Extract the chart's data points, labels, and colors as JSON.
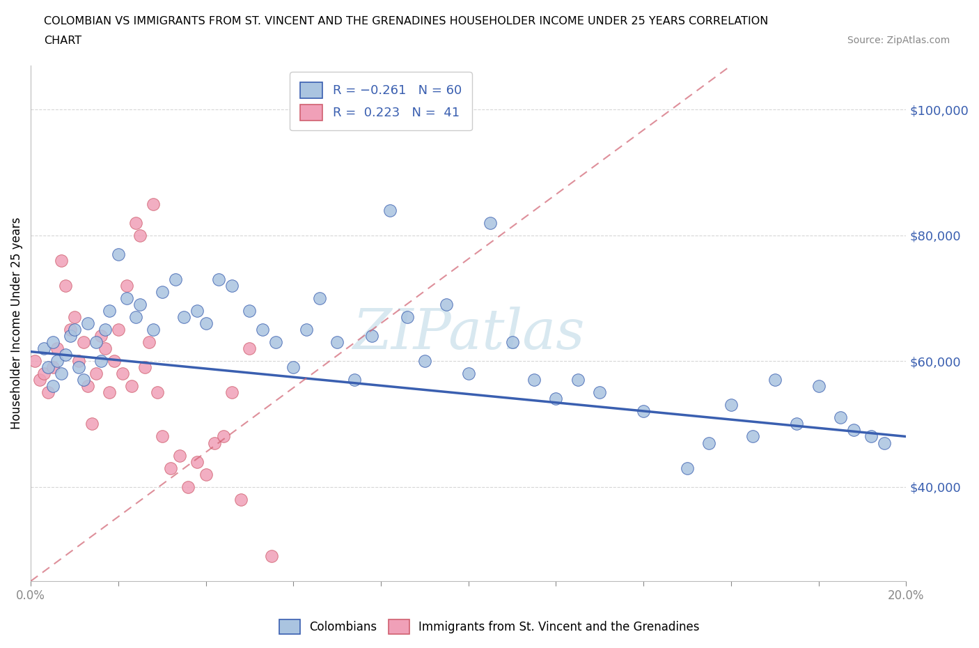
{
  "title_line1": "COLOMBIAN VS IMMIGRANTS FROM ST. VINCENT AND THE GRENADINES HOUSEHOLDER INCOME UNDER 25 YEARS CORRELATION",
  "title_line2": "CHART",
  "source_text": "Source: ZipAtlas.com",
  "ylabel": "Householder Income Under 25 years",
  "xlim": [
    0.0,
    0.2
  ],
  "ylim": [
    25000,
    107000
  ],
  "yticks": [
    40000,
    60000,
    80000,
    100000
  ],
  "ytick_labels": [
    "$40,000",
    "$60,000",
    "$80,000",
    "$100,000"
  ],
  "xticks": [
    0.0,
    0.02,
    0.04,
    0.06,
    0.08,
    0.1,
    0.12,
    0.14,
    0.16,
    0.18,
    0.2
  ],
  "xtick_labels": [
    "0.0%",
    "",
    "",
    "",
    "",
    "",
    "",
    "",
    "",
    "",
    "20.0%"
  ],
  "colombian_color": "#aac4e0",
  "svg_color": "#f0a0b8",
  "blue_line_color": "#3a5fb0",
  "pink_line_color": "#d06070",
  "background_color": "#ffffff",
  "watermark_color": "#d8e8f0",
  "colombian_x": [
    0.003,
    0.004,
    0.005,
    0.005,
    0.006,
    0.007,
    0.008,
    0.009,
    0.01,
    0.011,
    0.012,
    0.013,
    0.015,
    0.016,
    0.017,
    0.018,
    0.02,
    0.022,
    0.024,
    0.025,
    0.028,
    0.03,
    0.033,
    0.035,
    0.038,
    0.04,
    0.043,
    0.046,
    0.05,
    0.053,
    0.056,
    0.06,
    0.063,
    0.066,
    0.07,
    0.074,
    0.078,
    0.082,
    0.086,
    0.09,
    0.095,
    0.1,
    0.105,
    0.11,
    0.115,
    0.12,
    0.125,
    0.13,
    0.14,
    0.15,
    0.155,
    0.16,
    0.165,
    0.17,
    0.175,
    0.18,
    0.185,
    0.188,
    0.192,
    0.195
  ],
  "colombian_y": [
    62000,
    59000,
    56000,
    63000,
    60000,
    58000,
    61000,
    64000,
    65000,
    59000,
    57000,
    66000,
    63000,
    60000,
    65000,
    68000,
    77000,
    70000,
    67000,
    69000,
    65000,
    71000,
    73000,
    67000,
    68000,
    66000,
    73000,
    72000,
    68000,
    65000,
    63000,
    59000,
    65000,
    70000,
    63000,
    57000,
    64000,
    84000,
    67000,
    60000,
    69000,
    58000,
    82000,
    63000,
    57000,
    54000,
    57000,
    55000,
    52000,
    43000,
    47000,
    53000,
    48000,
    57000,
    50000,
    56000,
    51000,
    49000,
    48000,
    47000
  ],
  "svg_x": [
    0.001,
    0.002,
    0.003,
    0.004,
    0.005,
    0.006,
    0.007,
    0.008,
    0.009,
    0.01,
    0.011,
    0.012,
    0.013,
    0.014,
    0.015,
    0.016,
    0.017,
    0.018,
    0.019,
    0.02,
    0.021,
    0.022,
    0.023,
    0.024,
    0.025,
    0.026,
    0.027,
    0.028,
    0.029,
    0.03,
    0.032,
    0.034,
    0.036,
    0.038,
    0.04,
    0.042,
    0.044,
    0.046,
    0.048,
    0.05,
    0.055
  ],
  "svg_y": [
    60000,
    57000,
    58000,
    55000,
    59000,
    62000,
    76000,
    72000,
    65000,
    67000,
    60000,
    63000,
    56000,
    50000,
    58000,
    64000,
    62000,
    55000,
    60000,
    65000,
    58000,
    72000,
    56000,
    82000,
    80000,
    59000,
    63000,
    85000,
    55000,
    48000,
    43000,
    45000,
    40000,
    44000,
    42000,
    47000,
    48000,
    55000,
    38000,
    62000,
    29000
  ],
  "blue_line_x0": 0.0,
  "blue_line_y0": 61500,
  "blue_line_x1": 0.2,
  "blue_line_y1": 48000,
  "pink_line_x0": 0.0,
  "pink_line_y0": 25000,
  "pink_line_x1": 0.16,
  "pink_line_y1": 107000
}
